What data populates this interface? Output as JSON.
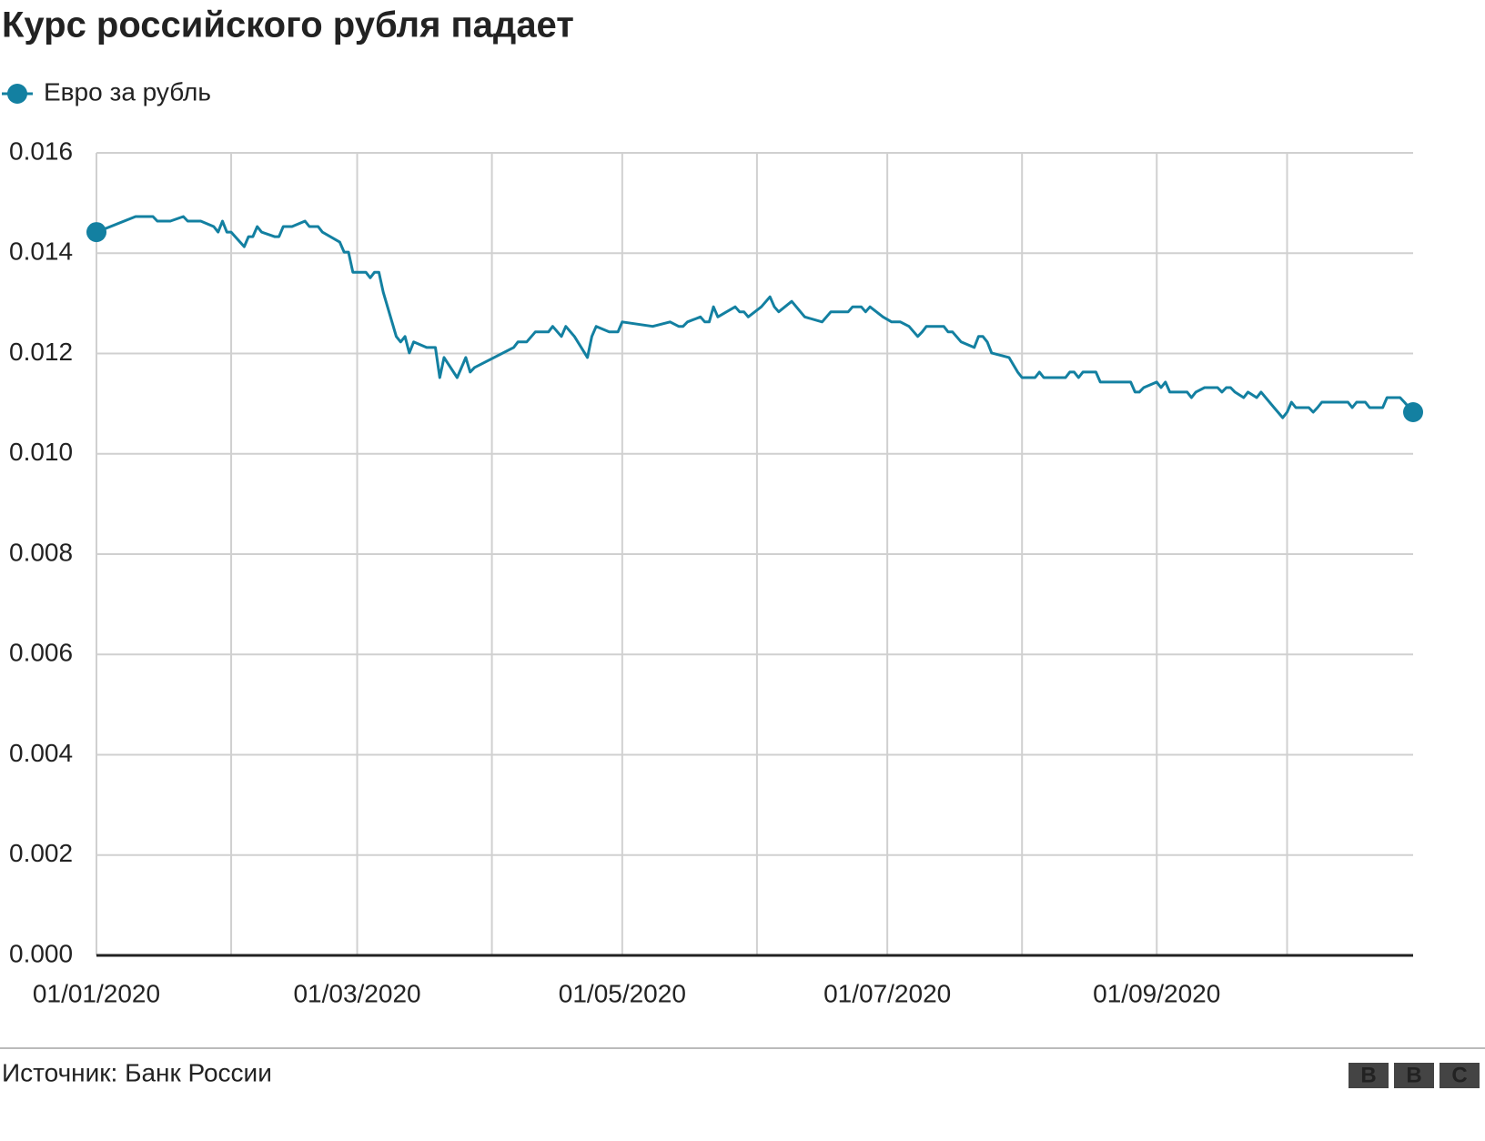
{
  "chart_data": {
    "type": "line",
    "title": "Курс российского рубля падает",
    "source": "Источник: Банк России",
    "logo": [
      "B",
      "B",
      "C"
    ],
    "x": [
      "2020-01-01",
      "2020-01-10",
      "2020-01-14",
      "2020-01-15",
      "2020-01-18",
      "2020-01-21",
      "2020-01-22",
      "2020-01-25",
      "2020-01-28",
      "2020-01-29",
      "2020-01-30",
      "2020-01-31",
      "2020-02-01",
      "2020-02-04",
      "2020-02-05",
      "2020-02-06",
      "2020-02-07",
      "2020-02-08",
      "2020-02-11",
      "2020-02-12",
      "2020-02-13",
      "2020-02-15",
      "2020-02-18",
      "2020-02-19",
      "2020-02-21",
      "2020-02-22",
      "2020-02-26",
      "2020-02-27",
      "2020-02-28",
      "2020-02-29",
      "2020-03-03",
      "2020-03-04",
      "2020-03-05",
      "2020-03-06",
      "2020-03-07",
      "2020-03-10",
      "2020-03-11",
      "2020-03-12",
      "2020-03-13",
      "2020-03-14",
      "2020-03-17",
      "2020-03-19",
      "2020-03-20",
      "2020-03-21",
      "2020-03-24",
      "2020-03-26",
      "2020-03-27",
      "2020-03-28",
      "2020-04-06",
      "2020-04-07",
      "2020-04-09",
      "2020-04-11",
      "2020-04-14",
      "2020-04-15",
      "2020-04-17",
      "2020-04-18",
      "2020-04-20",
      "2020-04-23",
      "2020-04-24",
      "2020-04-25",
      "2020-04-28",
      "2020-04-30",
      "2020-05-01",
      "2020-05-08",
      "2020-05-12",
      "2020-05-14",
      "2020-05-15",
      "2020-05-16",
      "2020-05-19",
      "2020-05-20",
      "2020-05-21",
      "2020-05-22",
      "2020-05-23",
      "2020-05-25",
      "2020-05-27",
      "2020-05-28",
      "2020-05-29",
      "2020-05-30",
      "2020-06-02",
      "2020-06-04",
      "2020-06-05",
      "2020-06-06",
      "2020-06-09",
      "2020-06-12",
      "2020-06-16",
      "2020-06-18",
      "2020-06-22",
      "2020-06-23",
      "2020-06-25",
      "2020-06-26",
      "2020-06-27",
      "2020-06-30",
      "2020-07-02",
      "2020-07-04",
      "2020-07-06",
      "2020-07-08",
      "2020-07-09",
      "2020-07-10",
      "2020-07-14",
      "2020-07-15",
      "2020-07-16",
      "2020-07-18",
      "2020-07-21",
      "2020-07-22",
      "2020-07-23",
      "2020-07-24",
      "2020-07-25",
      "2020-07-29",
      "2020-07-31",
      "2020-08-01",
      "2020-08-04",
      "2020-08-05",
      "2020-08-06",
      "2020-08-11",
      "2020-08-12",
      "2020-08-13",
      "2020-08-14",
      "2020-08-15",
      "2020-08-18",
      "2020-08-19",
      "2020-08-26",
      "2020-08-27",
      "2020-08-28",
      "2020-08-29",
      "2020-09-01",
      "2020-09-02",
      "2020-09-03",
      "2020-09-04",
      "2020-09-08",
      "2020-09-09",
      "2020-09-10",
      "2020-09-12",
      "2020-09-15",
      "2020-09-16",
      "2020-09-17",
      "2020-09-18",
      "2020-09-19",
      "2020-09-21",
      "2020-09-22",
      "2020-09-24",
      "2020-09-25",
      "2020-09-28",
      "2020-09-30",
      "2020-10-01",
      "2020-10-02",
      "2020-10-03",
      "2020-10-06",
      "2020-10-07",
      "2020-10-08",
      "2020-10-09",
      "2020-10-15",
      "2020-10-16",
      "2020-10-17",
      "2020-10-19",
      "2020-10-20",
      "2020-10-23",
      "2020-10-24",
      "2020-10-27",
      "2020-10-28",
      "2020-10-30"
    ],
    "series": [
      {
        "name": "Евро за рубль",
        "color": "#1380a1",
        "values": [
          0.01442,
          0.01473,
          0.01473,
          0.01464,
          0.01464,
          0.01473,
          0.01464,
          0.01464,
          0.01453,
          0.01442,
          0.01464,
          0.01442,
          0.01442,
          0.01413,
          0.01433,
          0.01433,
          0.01453,
          0.01442,
          0.01433,
          0.01433,
          0.01453,
          0.01453,
          0.01464,
          0.01453,
          0.01453,
          0.01442,
          0.01422,
          0.01402,
          0.01402,
          0.01362,
          0.01362,
          0.01351,
          0.01362,
          0.01362,
          0.01322,
          0.01234,
          0.01223,
          0.01234,
          0.01201,
          0.01223,
          0.01212,
          0.01212,
          0.01152,
          0.01192,
          0.01152,
          0.01192,
          0.01163,
          0.01172,
          0.01212,
          0.01223,
          0.01223,
          0.01243,
          0.01243,
          0.01254,
          0.01234,
          0.01254,
          0.01234,
          0.01192,
          0.01234,
          0.01254,
          0.01243,
          0.01243,
          0.01263,
          0.01254,
          0.01263,
          0.01254,
          0.01254,
          0.01263,
          0.01273,
          0.01263,
          0.01263,
          0.01293,
          0.01273,
          0.01283,
          0.01293,
          0.01283,
          0.01283,
          0.01273,
          0.01293,
          0.01313,
          0.01293,
          0.01283,
          0.01304,
          0.01273,
          0.01263,
          0.01283,
          0.01283,
          0.01293,
          0.01293,
          0.01283,
          0.01293,
          0.01273,
          0.01263,
          0.01263,
          0.01254,
          0.01234,
          0.01243,
          0.01254,
          0.01254,
          0.01243,
          0.01243,
          0.01223,
          0.01212,
          0.01234,
          0.01234,
          0.01223,
          0.01201,
          0.01192,
          0.01163,
          0.01152,
          0.01152,
          0.01163,
          0.01152,
          0.01152,
          0.01163,
          0.01163,
          0.01152,
          0.01163,
          0.01163,
          0.01143,
          0.01143,
          0.01123,
          0.01123,
          0.01132,
          0.01143,
          0.01132,
          0.01143,
          0.01123,
          0.01123,
          0.01112,
          0.01123,
          0.01132,
          0.01132,
          0.01123,
          0.01132,
          0.01132,
          0.01123,
          0.01112,
          0.01123,
          0.01112,
          0.01123,
          0.01092,
          0.01072,
          0.01083,
          0.01103,
          0.01092,
          0.01092,
          0.01083,
          0.01092,
          0.01103,
          0.01103,
          0.01092,
          0.01103,
          0.01103,
          0.01092,
          0.01092,
          0.01112,
          0.01112,
          0.01103,
          0.01083
        ]
      }
    ],
    "xlim": [
      "2020-01-01",
      "2020-10-30"
    ],
    "xticks": [
      {
        "value": "2020-01-01",
        "label": "01/01/2020"
      },
      {
        "value": "2020-02-01",
        "label": null
      },
      {
        "value": "2020-03-01",
        "label": "01/03/2020"
      },
      {
        "value": "2020-04-01",
        "label": null
      },
      {
        "value": "2020-05-01",
        "label": "01/05/2020"
      },
      {
        "value": "2020-06-01",
        "label": null
      },
      {
        "value": "2020-07-01",
        "label": "01/07/2020"
      },
      {
        "value": "2020-08-01",
        "label": null
      },
      {
        "value": "2020-09-01",
        "label": "01/09/2020"
      },
      {
        "value": "2020-10-01",
        "label": null
      }
    ],
    "ylim": [
      0,
      0.016
    ],
    "yticks": [
      {
        "value": 0,
        "label": "0.000"
      },
      0.002,
      0.004,
      0.006,
      0.008,
      {
        "value": 0.01,
        "label": "0.010"
      },
      0.012,
      0.014,
      0.016
    ],
    "grid": true,
    "legend": "top-left"
  }
}
